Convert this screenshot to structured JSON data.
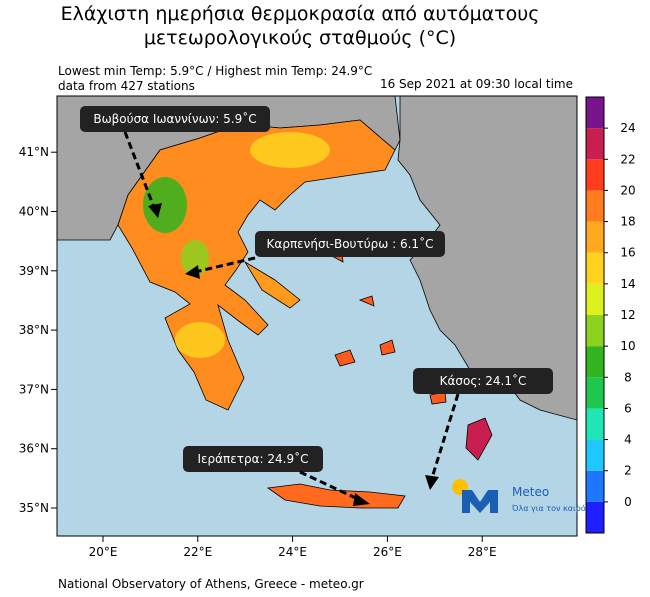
{
  "header": {
    "title_lines": [
      "Ελάχιστη ημερήσια θερμοκρασία από αυτόματους",
      "μετεωρολογικούς σταθμούς (°C)"
    ],
    "stats": "Lowest min Temp: 5.9°C / Highest min Temp: 24.9°C",
    "stations": "data from 427 stations",
    "timestamp": "16 Sep 2021 at 09:30 local time"
  },
  "map": {
    "lat_ticks": [
      {
        "value": 41,
        "label": "41°N"
      },
      {
        "value": 40,
        "label": "40°N"
      },
      {
        "value": 39,
        "label": "39°N"
      },
      {
        "value": 38,
        "label": "38°N"
      },
      {
        "value": 37,
        "label": "37°N"
      },
      {
        "value": 36,
        "label": "36°N"
      },
      {
        "value": 35,
        "label": "35°N"
      }
    ],
    "lon_ticks": [
      {
        "value": 20,
        "label": "20°E"
      },
      {
        "value": 22,
        "label": "22°E"
      },
      {
        "value": 24,
        "label": "24°E"
      },
      {
        "value": 26,
        "label": "26°E"
      },
      {
        "value": 28,
        "label": "28°E"
      }
    ],
    "callouts": [
      "Βωβούσα Ιωαννίνων: 5.9˚C",
      "Καρπενήσι-Βουτύρω : 6.1˚C",
      "Κάσος: 24.1˚C",
      "Ιεράπετρα: 24.9˚C"
    ]
  },
  "colorbar": {
    "range": [
      -2,
      26
    ],
    "ticks": [
      0,
      2,
      4,
      6,
      8,
      10,
      12,
      14,
      16,
      18,
      20,
      22,
      24
    ],
    "colors": [
      "#1e1eff",
      "#1e78ff",
      "#1ec8ff",
      "#1ee6b4",
      "#1ec850",
      "#32b41e",
      "#8cd21e",
      "#dcf01e",
      "#ffd21e",
      "#ffaa1e",
      "#ff7d1e",
      "#ff3c1e",
      "#c81e50",
      "#78148c"
    ]
  },
  "logo": {
    "name": "Meteo",
    "tagline": "Όλα για τον καιρό"
  },
  "footer": "National Observatory of Athens, Greece - meteo.gr"
}
